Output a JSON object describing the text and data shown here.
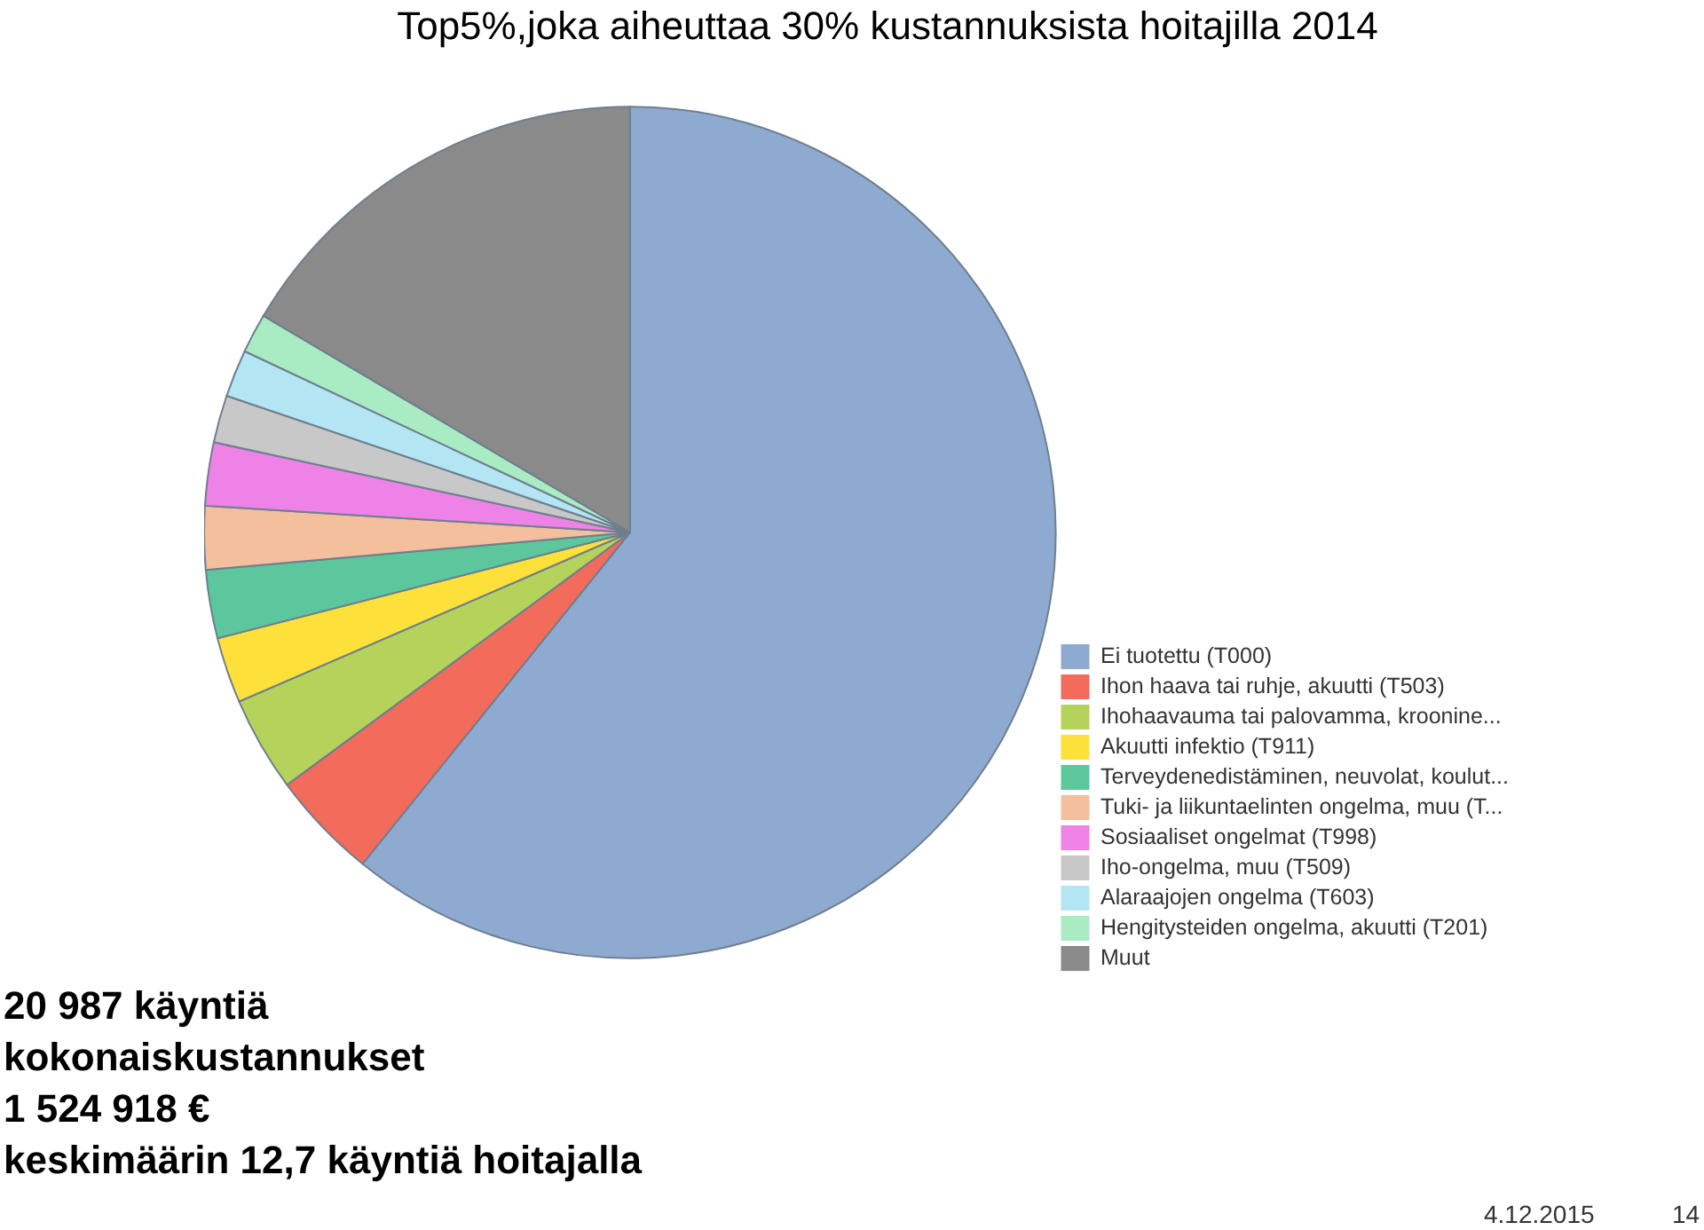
{
  "chart_data": {
    "type": "pie",
    "title": "Top5%,joka aiheuttaa 30% kustannuksista hoitajilla 2014",
    "categories": [
      "Ei tuotettu (T000)",
      "Ihon haava tai ruhje, akuutti (T503)",
      "Ihohaavauma tai palovamma, kroonine...",
      "Akuutti infektio (T911)",
      "Terveydenedistäminen, neuvolat, koulut...",
      "Tuki- ja liikuntaelinten ongelma, muu (T...",
      "Sosiaaliset ongelmat (T998)",
      "Iho-ongelma, muu (T509)",
      "Alaraajojen ongelma (T603)",
      "Hengitysteiden ongelma, akuutti (T201)",
      "Muut"
    ],
    "values": [
      60.8,
      4.1,
      3.6,
      2.5,
      2.6,
      2.4,
      2.4,
      1.8,
      1.8,
      1.5,
      16.5
    ],
    "colors": [
      "#8eaad1",
      "#f26b5b",
      "#b5d35a",
      "#fde13a",
      "#5cc79c",
      "#f3bf9c",
      "#ef82e6",
      "#c8c8c8",
      "#b3e6f2",
      "#a9ecc4",
      "#8a8a8a"
    ],
    "legend": "right",
    "annotations": [
      "20 987 käyntiä",
      "kokonaiskustannukset",
      "1 524 918 €",
      "keskimäärin  12,7 käyntiä hoitajalla",
      "4.12.2015",
      "14"
    ]
  }
}
